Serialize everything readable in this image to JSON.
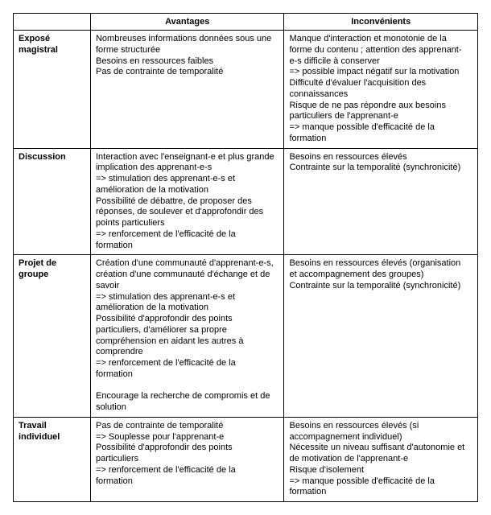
{
  "table": {
    "headers": {
      "rowhead": "",
      "advantages": "Avantages",
      "disadvantages": "Inconvénients"
    },
    "rows": [
      {
        "label_lines": [
          "Exposé",
          "magistral"
        ],
        "advantages": [
          "Nombreuses informations données sous une",
          "forme structurée",
          "Besoins en ressources faibles",
          "Pas de contrainte de temporalité"
        ],
        "advantages_justify": false,
        "disadvantages": [
          "Manque d'interaction et monotonie de la",
          "forme du contenu ; attention des apprenant-",
          "e-s difficile à conserver",
          "=> possible impact négatif sur la motivation",
          "Difficulté d'évaluer l'acquisition des",
          "connaissances",
          "Risque de ne pas répondre aux besoins",
          "particuliers de l'apprenant-e",
          "=> manque possible d'efficacité de la",
          "formation"
        ],
        "disadvantages_justify": false
      },
      {
        "label_lines": [
          "Discussion"
        ],
        "advantages": [
          "Interaction avec l'enseignant-e et plus grande",
          "implication des apprenant-e-s",
          "=> stimulation des apprenant-e-s et",
          "amélioration de la motivation",
          "Possibilité de débattre, de proposer des",
          "réponses, de soulever et d'approfondir des",
          "points particuliers",
          "=> renforcement de l'efficacité de la",
          "formation"
        ],
        "advantages_justify": true,
        "disadvantages": [
          "Besoins en ressources élevés",
          "Contrainte sur la temporalité (synchronicité)"
        ],
        "disadvantages_justify": false
      },
      {
        "label_lines": [
          "Projet de groupe"
        ],
        "advantages": [
          "Création d'une communauté d'apprenant-e-s,",
          "création d'une communauté d'échange et de",
          "savoir",
          "=> stimulation des apprenant-e-s et",
          "amélioration de la motivation",
          "Possibilité d'approfondir des points",
          "particuliers, d'améliorer sa propre",
          "compréhension en aidant les autres à",
          "comprendre",
          "=> renforcement de l'efficacité de la",
          "formation",
          " ",
          "Encourage la recherche de compromis et de",
          "solution"
        ],
        "advantages_justify": false,
        "disadvantages": [
          "Besoins en ressources élevés (organisation",
          "et accompagnement des groupes)",
          "Contrainte sur la temporalité (synchronicité)"
        ],
        "disadvantages_justify": false
      },
      {
        "label_lines": [
          "Travail",
          "individuel"
        ],
        "advantages": [
          "Pas de contrainte de temporalité",
          " => Souplesse pour l'apprenant-e",
          "Possibilité d'approfondir des points",
          "particuliers",
          "=> renforcement de l'efficacité de la",
          "formation"
        ],
        "advantages_justify": false,
        "disadvantages": [
          "Besoins en ressources élevés (si",
          "accompagnement individuel)",
          "Nécessite un niveau suffisant d'autonomie et",
          "de motivation de l'apprenant-e",
          "Risque d'isolement",
          "=> manque possible d'efficacité de la",
          "formation"
        ],
        "disadvantages_justify": false
      }
    ]
  }
}
